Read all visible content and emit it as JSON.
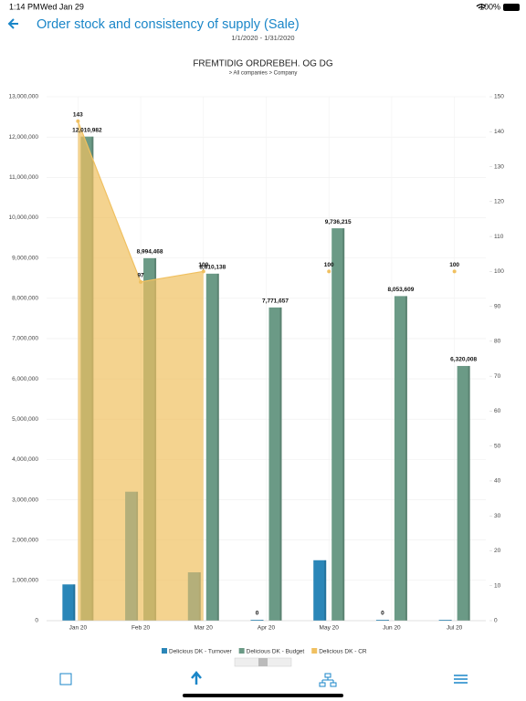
{
  "status": {
    "time": "1:14 PM",
    "date": "Wed Jan 29",
    "battery": "100%"
  },
  "header": {
    "title": "Order stock and consistency of supply (Sale)",
    "date_range": "1/1/2020 - 1/31/2020"
  },
  "chart_data": {
    "type": "bar",
    "title": "FREMTIDIG ORDREBEH. OG DG",
    "subtitle": "> All companies > Company",
    "categories": [
      "Jan 20",
      "Feb 20",
      "Mar 20",
      "Apr 20",
      "May 20",
      "Jun 20",
      "Jul 20"
    ],
    "series": [
      {
        "name": "Delicious DK - Turnover",
        "color": "#2a86b8",
        "type": "bar",
        "values": [
          900000,
          3200000,
          1200000,
          0,
          1500000,
          0,
          20000
        ],
        "value_labels": [
          null,
          null,
          null,
          "0",
          null,
          "0",
          null
        ]
      },
      {
        "name": "Delicious DK - Budget",
        "color": "#6b9a86",
        "type": "bar",
        "values": [
          12010982,
          8994468,
          8610138,
          7771657,
          9736215,
          8053609,
          6320008
        ],
        "value_labels": [
          "12,010,982",
          "8,994,468",
          "8,610,138",
          "7,771,657",
          "9,736,215",
          "8,053,609",
          "6,320,008"
        ]
      },
      {
        "name": "Delicious DK - CR",
        "color": "#f0c060",
        "type": "area",
        "axis": "y2",
        "values": [
          143,
          97,
          100,
          null,
          100,
          null,
          100
        ]
      }
    ],
    "ylim": [
      0,
      13000000
    ],
    "yticks": [
      0,
      {
        "value": 1000000,
        "label": "1,000,000"
      },
      {
        "value": 2000000,
        "label": "2,000,000"
      },
      {
        "value": 3000000,
        "label": "3,000,000"
      },
      {
        "value": 4000000,
        "label": "4,000,000"
      },
      {
        "value": 5000000,
        "label": "5,000,000"
      },
      {
        "value": 6000000,
        "label": "6,000,000"
      },
      {
        "value": 7000000,
        "label": "7,000,000"
      },
      {
        "value": 8000000,
        "label": "8,000,000"
      },
      {
        "value": 9000000,
        "label": "9,000,000"
      },
      {
        "value": 10000000,
        "label": "10,000,000"
      },
      {
        "value": 11000000,
        "label": "11,000,000"
      },
      {
        "value": 12000000,
        "label": "12,000,000"
      },
      {
        "value": 13000000,
        "label": "13,000,000"
      }
    ],
    "y2lim": [
      0,
      150
    ],
    "y2ticks": [
      0,
      10,
      20,
      30,
      40,
      50,
      60,
      70,
      80,
      90,
      100,
      110,
      120,
      130,
      140,
      150
    ],
    "grid": true
  }
}
